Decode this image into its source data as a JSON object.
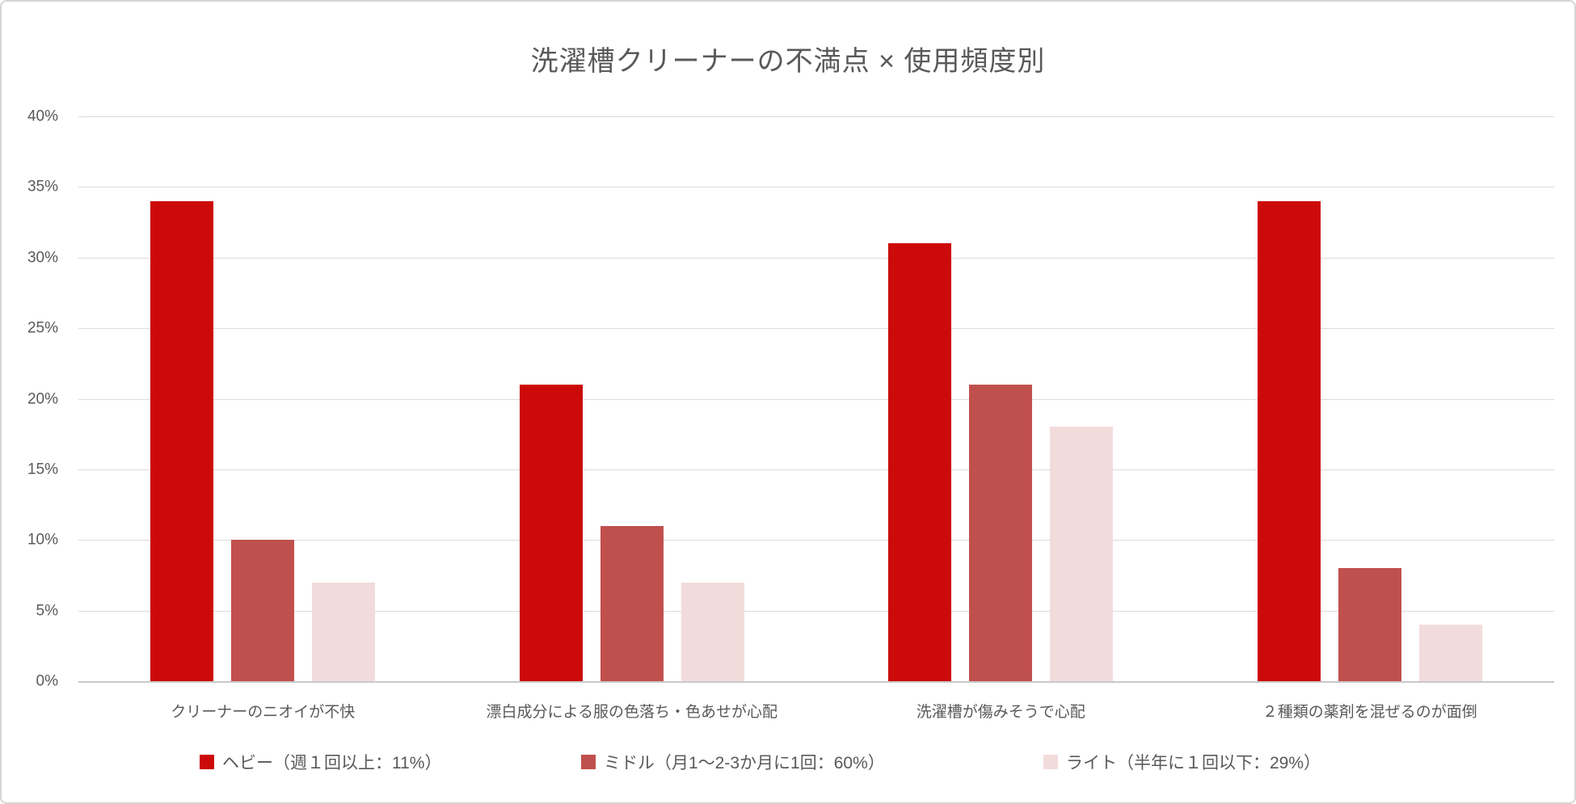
{
  "frame": {
    "background": "#ffffff",
    "border_color": "#d5d5d5"
  },
  "chart_data": {
    "type": "bar",
    "title": "洗濯槽クリーナーの不満点 × 使用頻度別",
    "categories": [
      "クリーナーのニオイが不快",
      "漂白成分による服の色落ち・色あせが心配",
      "洗濯槽が傷みそうで心配",
      "２種類の薬剤を混ぜるのが面倒"
    ],
    "series": [
      {
        "id": "heavy",
        "name": "ヘビー（週１回以上：11%）",
        "color": "#cc0a0a",
        "values": [
          34,
          21,
          31,
          34
        ]
      },
      {
        "id": "middle",
        "name": "ミドル（月1～2-3か月に1回：60%）",
        "color": "#c0504d",
        "values": [
          10,
          11,
          21,
          8
        ]
      },
      {
        "id": "light",
        "name": "ライト（半年に１回以下：29%）",
        "color": "#f2dcdb",
        "values": [
          7,
          7,
          18,
          4
        ]
      }
    ],
    "y_axis": {
      "min": 0,
      "max": 40,
      "step": 5,
      "tick_labels": [
        "0%",
        "5%",
        "10%",
        "15%",
        "20%",
        "25%",
        "30%",
        "35%",
        "40%"
      ]
    },
    "grid": true,
    "legend_position": "bottom",
    "text_color": "#595959",
    "gridline_color": "#dbdbdb",
    "axisline_color": "#c9c9c9"
  }
}
